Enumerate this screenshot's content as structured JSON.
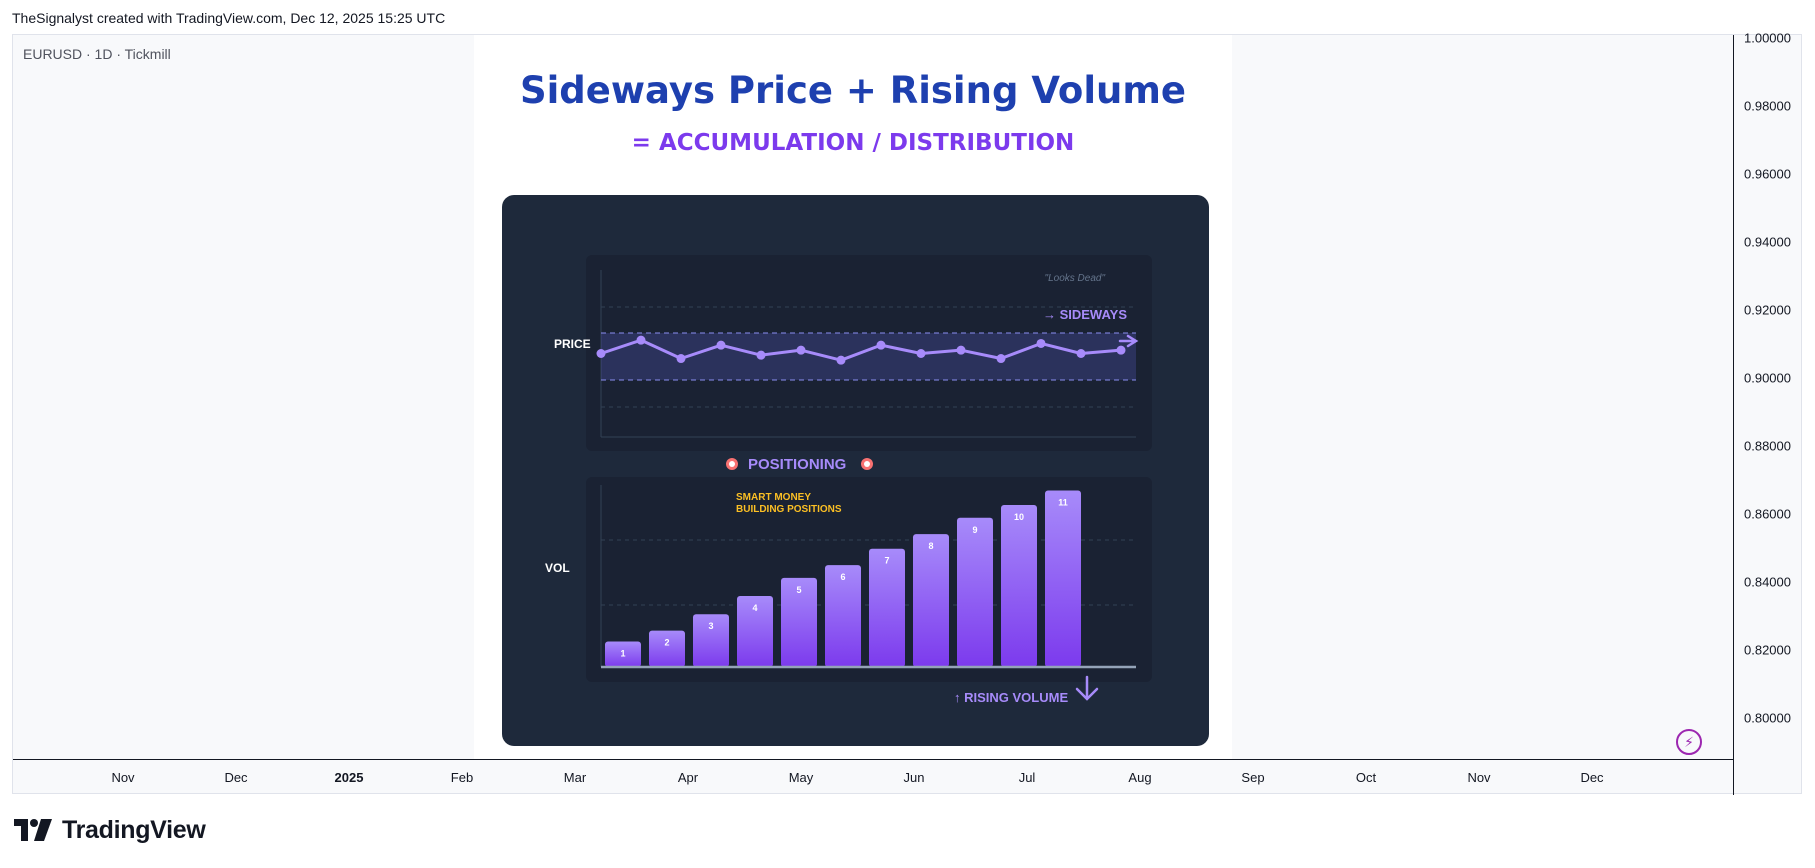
{
  "header": {
    "note": "TheSignalyst created with TradingView.com, Dec 12, 2025 15:25 UTC"
  },
  "symbol": {
    "info": "EURUSD · 1D · Tickmill"
  },
  "price_axis": {
    "labels": [
      "1.00000",
      "0.98000",
      "0.96000",
      "0.94000",
      "0.92000",
      "0.90000",
      "0.88000",
      "0.86000",
      "0.84000",
      "0.82000",
      "0.80000"
    ]
  },
  "time_axis": {
    "labels": [
      "Nov",
      "Dec",
      "2025",
      "Feb",
      "Mar",
      "Apr",
      "May",
      "Jun",
      "Jul",
      "Aug",
      "Sep",
      "Oct",
      "Nov",
      "Dec"
    ]
  },
  "brand": {
    "name": "TradingView"
  },
  "colors": {
    "title": "#1e40af",
    "accent": "#7c3aed",
    "card": "#1e293b",
    "panel": "#1a2233",
    "bar": "#a78bfa",
    "annotation": "#fbbf24"
  },
  "chart_data": {
    "type": "bar",
    "title": "Sideways Price + Rising Volume",
    "subtitle": "= ACCUMULATION / DISTRIBUTION",
    "price_label": "PRICE",
    "volume_label": "VOL",
    "annotations": {
      "looks_dead": "\"Looks Dead\"",
      "sideways": "→ SIDEWAYS",
      "positioning": "POSITIONING",
      "smart_money_1": "SMART MONEY",
      "smart_money_2": "BUILDING POSITIONS",
      "rising_volume": "↑ RISING VOLUME"
    },
    "price_series": [
      50,
      58,
      47,
      55,
      49,
      52,
      46,
      55,
      50,
      52,
      47,
      56,
      50,
      52
    ],
    "price_range": [
      0,
      100
    ],
    "volume_categories": [
      "1",
      "2",
      "3",
      "4",
      "5",
      "6",
      "7",
      "8",
      "9",
      "10",
      "11"
    ],
    "volume_values": [
      14,
      20,
      29,
      39,
      49,
      56,
      65,
      73,
      82,
      89,
      97
    ],
    "volume_range": [
      0,
      100
    ],
    "legend": "none",
    "grid": true
  }
}
